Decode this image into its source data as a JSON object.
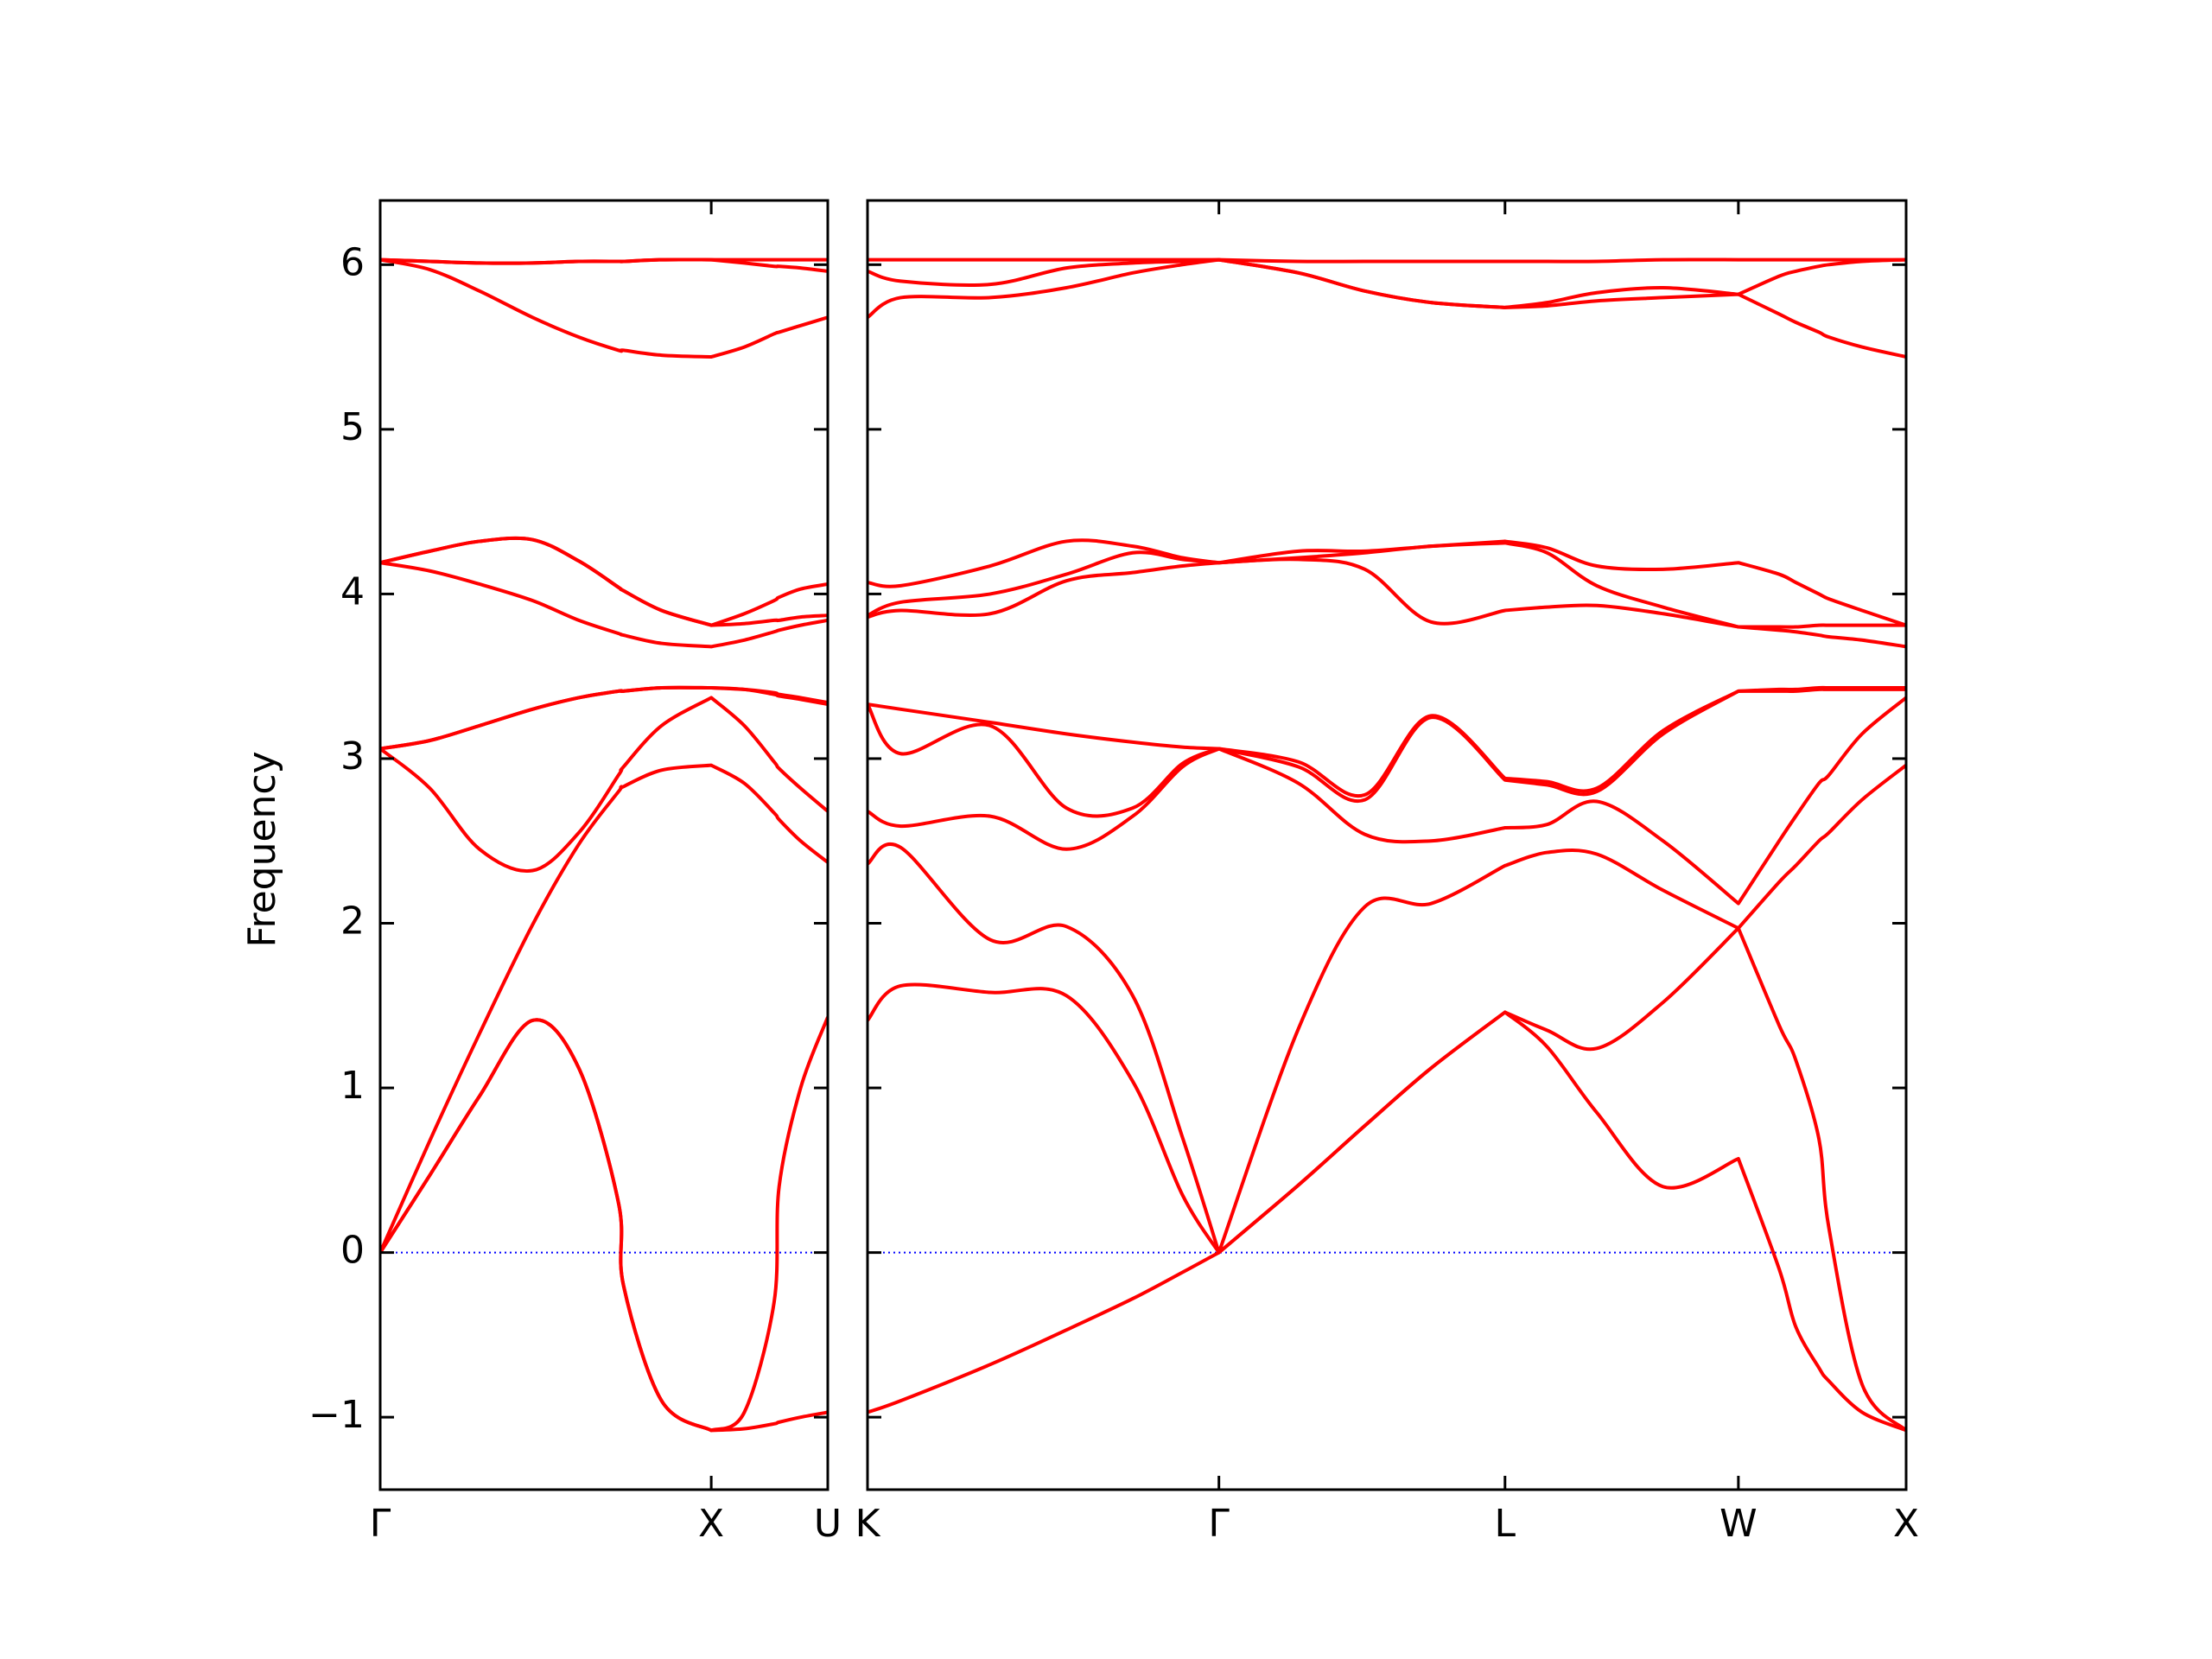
{
  "chart_data": [
    {
      "type": "line",
      "ylabel": "Frequency",
      "color": "#ff0000",
      "reference_line": {
        "value": 0,
        "color": "#0000ff"
      },
      "xlim": [
        0,
        1.352
      ],
      "ylim": [
        -1.44,
        6.39
      ],
      "xticks": [
        {
          "value": 0,
          "label": "Γ"
        },
        {
          "value": 1,
          "label": "X"
        },
        {
          "value": 1.352,
          "label": "U"
        }
      ],
      "yticks": [
        {
          "value": -1,
          "label": "−1"
        },
        0,
        1,
        2,
        3,
        4,
        5,
        6
      ],
      "x": [
        0,
        0.15,
        0.3,
        0.46,
        0.6,
        0.72,
        0.735,
        0.85,
        1,
        1.1,
        1.19,
        1.205,
        1.27,
        1.352
      ],
      "series": [
        {
          "values": [
            0,
            0.47,
            0.95,
            1.41,
            1.12,
            0.3,
            -0.2,
            -0.9,
            -1.08,
            -1.07,
            -1.04,
            -1.03,
            -1.0,
            -0.97
          ]
        },
        {
          "values": [
            0,
            0.47,
            0.95,
            1.41,
            1.12,
            0.3,
            -0.2,
            -0.9,
            -1.08,
            -0.97,
            -0.3,
            0.4,
            1.0,
            1.43
          ]
        },
        {
          "values": [
            0,
            0.68,
            1.33,
            1.99,
            2.48,
            2.8,
            2.83,
            2.93,
            2.96,
            2.85,
            2.67,
            2.63,
            2.5,
            2.37
          ]
        },
        {
          "values": [
            3.06,
            2.82,
            2.45,
            2.32,
            2.55,
            2.9,
            2.95,
            3.2,
            3.37,
            3.2,
            2.98,
            2.94,
            2.82,
            2.68
          ]
        },
        {
          "values": [
            3.06,
            3.11,
            3.2,
            3.3,
            3.37,
            3.41,
            3.41,
            3.43,
            3.43,
            3.42,
            3.39,
            3.38,
            3.36,
            3.33
          ]
        },
        {
          "values": [
            3.06,
            3.11,
            3.2,
            3.3,
            3.37,
            3.41,
            3.41,
            3.43,
            3.43,
            3.42,
            3.4,
            3.39,
            3.37,
            3.34
          ]
        },
        {
          "values": [
            4.19,
            4.14,
            4.06,
            3.96,
            3.84,
            3.76,
            3.75,
            3.7,
            3.68,
            3.72,
            3.77,
            3.78,
            3.81,
            3.84
          ]
        },
        {
          "values": [
            4.19,
            4.26,
            4.32,
            4.33,
            4.2,
            4.04,
            4.02,
            3.9,
            3.81,
            3.82,
            3.84,
            3.84,
            3.86,
            3.87
          ]
        },
        {
          "values": [
            4.19,
            4.26,
            4.32,
            4.33,
            4.2,
            4.04,
            4.02,
            3.9,
            3.81,
            3.88,
            3.96,
            3.98,
            4.03,
            4.06
          ]
        },
        {
          "values": [
            6.03,
            5.97,
            5.84,
            5.68,
            5.56,
            5.48,
            5.48,
            5.45,
            5.44,
            5.5,
            5.58,
            5.59,
            5.63,
            5.68
          ]
        },
        {
          "values": [
            6.03,
            6.02,
            6.01,
            6.01,
            6.02,
            6.02,
            6.02,
            6.03,
            6.03,
            6.01,
            5.99,
            5.99,
            5.98,
            5.96
          ]
        },
        {
          "values": [
            6.03,
            6.02,
            6.01,
            6.01,
            6.02,
            6.02,
            6.02,
            6.03,
            6.03,
            6.03,
            6.03,
            6.03,
            6.03,
            6.03
          ]
        }
      ]
    },
    {
      "type": "line",
      "color": "#ff0000",
      "reference_line": {
        "value": 0,
        "color": "#0000ff"
      },
      "xlim": [
        0,
        3.133
      ],
      "ylim": [
        -1.44,
        6.39
      ],
      "xticks": [
        {
          "value": 0,
          "label": "K"
        },
        {
          "value": 1.06,
          "label": "Γ"
        },
        {
          "value": 1.923,
          "label": "L"
        },
        {
          "value": 2.627,
          "label": "W"
        },
        {
          "value": 3.133,
          "label": "X"
        }
      ],
      "x": [
        0,
        0.1,
        0.37,
        0.6,
        0.8,
        0.95,
        1.06,
        1.3,
        1.5,
        1.7,
        1.923,
        2.05,
        2.2,
        2.4,
        2.627,
        2.75,
        2.8,
        2.87,
        2.9,
        3.0,
        3.133
      ],
      "series": [
        {
          "values": [
            -0.97,
            -0.9,
            -0.68,
            -0.47,
            -0.28,
            -0.12,
            0,
            0.41,
            0.77,
            1.12,
            1.46,
            1.25,
            0.85,
            0.4,
            0.57,
            -0.1,
            -0.45,
            -0.7,
            -0.78,
            -0.97,
            -1.08
          ]
        },
        {
          "values": [
            1.41,
            1.62,
            1.58,
            1.56,
            1.04,
            0.35,
            0,
            0.41,
            0.77,
            1.12,
            1.46,
            1.35,
            1.24,
            1.52,
            1.97,
            1.38,
            1.17,
            0.69,
            0.15,
            -0.8,
            -1.08
          ]
        },
        {
          "values": [
            2.36,
            2.46,
            1.9,
            1.98,
            1.56,
            0.7,
            0,
            1.36,
            2.1,
            2.12,
            2.35,
            2.43,
            2.42,
            2.2,
            1.97,
            2.25,
            2.35,
            2.5,
            2.55,
            2.75,
            2.96
          ]
        },
        {
          "values": [
            2.68,
            2.59,
            2.65,
            2.45,
            2.65,
            2.95,
            3.06,
            2.85,
            2.54,
            2.5,
            2.58,
            2.6,
            2.74,
            2.5,
            2.12,
            2.5,
            2.65,
            2.85,
            2.9,
            3.15,
            3.37
          ]
        },
        {
          "values": [
            3.33,
            3.03,
            3.2,
            2.7,
            2.7,
            2.97,
            3.06,
            2.95,
            2.75,
            3.25,
            2.87,
            2.84,
            2.8,
            3.15,
            3.41,
            3.41,
            3.41,
            3.42,
            3.42,
            3.42,
            3.42
          ]
        },
        {
          "values": [
            3.33,
            3.3,
            3.22,
            3.15,
            3.1,
            3.07,
            3.06,
            2.98,
            2.78,
            3.26,
            2.88,
            2.86,
            2.82,
            3.17,
            3.41,
            3.42,
            3.42,
            3.43,
            3.43,
            3.43,
            3.43
          ]
        },
        {
          "values": [
            3.86,
            3.9,
            3.88,
            4.08,
            4.13,
            4.17,
            4.19,
            4.21,
            4.15,
            3.83,
            3.9,
            3.92,
            3.93,
            3.88,
            3.8,
            3.78,
            3.77,
            3.75,
            3.74,
            3.72,
            3.68
          ]
        },
        {
          "values": [
            3.87,
            3.95,
            4.0,
            4.12,
            4.25,
            4.21,
            4.19,
            4.22,
            4.25,
            4.29,
            4.31,
            4.25,
            4.05,
            3.92,
            3.8,
            3.8,
            3.8,
            3.81,
            3.81,
            3.81,
            3.81
          ]
        },
        {
          "values": [
            4.07,
            4.05,
            4.17,
            4.32,
            4.29,
            4.22,
            4.19,
            4.26,
            4.26,
            4.29,
            4.32,
            4.28,
            4.17,
            4.15,
            4.19,
            4.12,
            4.07,
            4.0,
            3.97,
            3.9,
            3.81
          ]
        },
        {
          "values": [
            5.68,
            5.8,
            5.8,
            5.86,
            5.95,
            6.0,
            6.03,
            5.95,
            5.84,
            5.77,
            5.74,
            5.75,
            5.78,
            5.8,
            5.82,
            5.7,
            5.65,
            5.59,
            5.56,
            5.5,
            5.44
          ]
        },
        {
          "values": [
            5.96,
            5.9,
            5.88,
            5.98,
            6.01,
            6.02,
            6.03,
            5.95,
            5.84,
            5.77,
            5.74,
            5.77,
            5.83,
            5.86,
            5.82,
            5.93,
            5.96,
            5.99,
            6.0,
            6.02,
            6.03
          ]
        },
        {
          "values": [
            6.03,
            6.03,
            6.03,
            6.03,
            6.03,
            6.03,
            6.03,
            6.02,
            6.02,
            6.02,
            6.02,
            6.02,
            6.02,
            6.03,
            6.03,
            6.03,
            6.03,
            6.03,
            6.03,
            6.03,
            6.03
          ]
        }
      ]
    }
  ]
}
